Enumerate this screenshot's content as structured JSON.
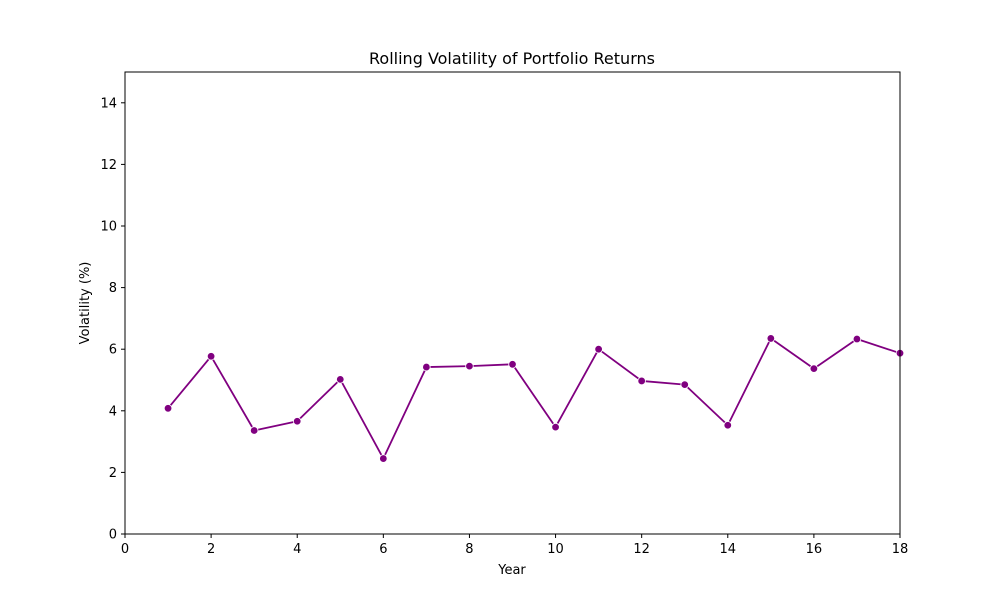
{
  "chart_data": {
    "type": "line",
    "title": "Rolling Volatility of Portfolio Returns",
    "xlabel": "Year",
    "ylabel": "Volatility (%)",
    "xlim": [
      0,
      18
    ],
    "ylim": [
      0,
      15
    ],
    "xticks": [
      0,
      2,
      4,
      6,
      8,
      10,
      12,
      14,
      16,
      18
    ],
    "yticks": [
      0,
      2,
      4,
      6,
      8,
      10,
      12,
      14
    ],
    "grid": false,
    "series": [
      {
        "color": "#800080",
        "marker": "circle",
        "x": [
          1,
          2,
          3,
          4,
          5,
          6,
          7,
          8,
          9,
          10,
          11,
          12,
          13,
          14,
          15,
          16,
          17,
          18
        ],
        "y": [
          4.08,
          5.77,
          3.36,
          3.66,
          5.02,
          2.45,
          5.42,
          5.45,
          5.51,
          3.47,
          6.0,
          4.97,
          4.85,
          3.53,
          6.35,
          5.37,
          6.33,
          5.87
        ]
      }
    ]
  }
}
